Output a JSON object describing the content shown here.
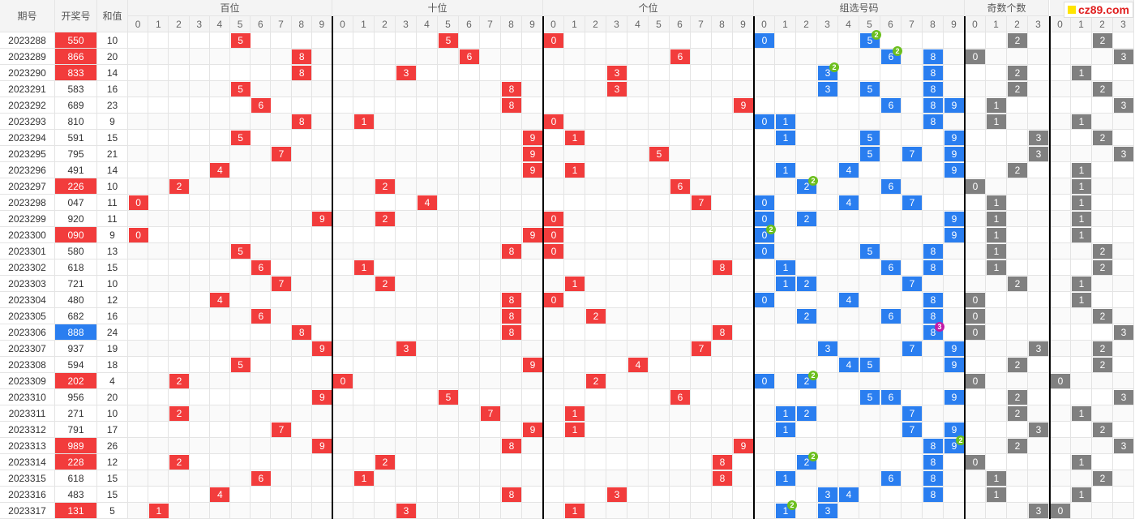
{
  "header": {
    "issue": "期号",
    "draw": "开奖号",
    "sum": "和值",
    "groups": [
      "百位",
      "十位",
      "个位",
      "组选号码",
      "奇数个数",
      ""
    ],
    "digits": [
      "0",
      "1",
      "2",
      "3",
      "4",
      "5",
      "6",
      "7",
      "8",
      "9"
    ],
    "odd_counts": [
      "0",
      "1",
      "2",
      "3"
    ]
  },
  "logo": {
    "text": "cz89.com"
  },
  "colors": {
    "red": "#f23c3c",
    "blue": "#2a7ef0",
    "gray": "#808080",
    "green": "#6cbf1e",
    "magenta": "#c21aa8"
  },
  "chart_data": {
    "type": "table",
    "rows": [
      {
        "issue": "2023288",
        "draw": "550",
        "sum": "10",
        "draw_hl": "red",
        "odd": 2,
        "small": 2,
        "rep": {
          "5": 2
        }
      },
      {
        "issue": "2023289",
        "draw": "866",
        "sum": "20",
        "draw_hl": "red",
        "odd": 0,
        "small": 3,
        "rep": {
          "6": 2
        }
      },
      {
        "issue": "2023290",
        "draw": "833",
        "sum": "14",
        "draw_hl": "red",
        "odd": 2,
        "small": 1,
        "rep": {
          "3": 2
        }
      },
      {
        "issue": "2023291",
        "draw": "583",
        "sum": "16",
        "draw_hl": "",
        "odd": 2,
        "small": 2,
        "rep": {}
      },
      {
        "issue": "2023292",
        "draw": "689",
        "sum": "23",
        "draw_hl": "",
        "odd": 1,
        "small": 3,
        "rep": {}
      },
      {
        "issue": "2023293",
        "draw": "810",
        "sum": "9",
        "draw_hl": "",
        "odd": 1,
        "small": 1,
        "rep": {}
      },
      {
        "issue": "2023294",
        "draw": "591",
        "sum": "15",
        "draw_hl": "",
        "odd": 3,
        "small": 2,
        "rep": {}
      },
      {
        "issue": "2023295",
        "draw": "795",
        "sum": "21",
        "draw_hl": "",
        "odd": 3,
        "small": 3,
        "rep": {}
      },
      {
        "issue": "2023296",
        "draw": "491",
        "sum": "14",
        "draw_hl": "",
        "odd": 2,
        "small": 1,
        "rep": {}
      },
      {
        "issue": "2023297",
        "draw": "226",
        "sum": "10",
        "draw_hl": "red",
        "odd": 0,
        "small": 1,
        "rep": {
          "2": 2
        }
      },
      {
        "issue": "2023298",
        "draw": "047",
        "sum": "11",
        "draw_hl": "",
        "odd": 1,
        "small": 1,
        "rep": {}
      },
      {
        "issue": "2023299",
        "draw": "920",
        "sum": "11",
        "draw_hl": "",
        "odd": 1,
        "small": 1,
        "rep": {}
      },
      {
        "issue": "2023300",
        "draw": "090",
        "sum": "9",
        "draw_hl": "red",
        "odd": 1,
        "small": 1,
        "rep": {
          "0": 2
        }
      },
      {
        "issue": "2023301",
        "draw": "580",
        "sum": "13",
        "draw_hl": "",
        "odd": 1,
        "small": 2,
        "rep": {}
      },
      {
        "issue": "2023302",
        "draw": "618",
        "sum": "15",
        "draw_hl": "",
        "odd": 1,
        "small": 2,
        "rep": {}
      },
      {
        "issue": "2023303",
        "draw": "721",
        "sum": "10",
        "draw_hl": "",
        "odd": 2,
        "small": 1,
        "rep": {}
      },
      {
        "issue": "2023304",
        "draw": "480",
        "sum": "12",
        "draw_hl": "",
        "odd": 0,
        "small": 1,
        "rep": {}
      },
      {
        "issue": "2023305",
        "draw": "682",
        "sum": "16",
        "draw_hl": "",
        "odd": 0,
        "small": 2,
        "rep": {}
      },
      {
        "issue": "2023306",
        "draw": "888",
        "sum": "24",
        "draw_hl": "blue",
        "odd": 0,
        "small": 3,
        "rep": {
          "8": 3
        }
      },
      {
        "issue": "2023307",
        "draw": "937",
        "sum": "19",
        "draw_hl": "",
        "odd": 3,
        "small": 2,
        "rep": {}
      },
      {
        "issue": "2023308",
        "draw": "594",
        "sum": "18",
        "draw_hl": "",
        "odd": 2,
        "small": 2,
        "rep": {}
      },
      {
        "issue": "2023309",
        "draw": "202",
        "sum": "4",
        "draw_hl": "red",
        "odd": 0,
        "small": 0,
        "rep": {
          "2": 2
        }
      },
      {
        "issue": "2023310",
        "draw": "956",
        "sum": "20",
        "draw_hl": "",
        "odd": 2,
        "small": 3,
        "rep": {}
      },
      {
        "issue": "2023311",
        "draw": "271",
        "sum": "10",
        "draw_hl": "",
        "odd": 2,
        "small": 1,
        "rep": {}
      },
      {
        "issue": "2023312",
        "draw": "791",
        "sum": "17",
        "draw_hl": "",
        "odd": 3,
        "small": 2,
        "rep": {}
      },
      {
        "issue": "2023313",
        "draw": "989",
        "sum": "26",
        "draw_hl": "red",
        "odd": 2,
        "small": 3,
        "rep": {
          "9": 2
        }
      },
      {
        "issue": "2023314",
        "draw": "228",
        "sum": "12",
        "draw_hl": "red",
        "odd": 0,
        "small": 1,
        "rep": {
          "2": 2
        }
      },
      {
        "issue": "2023315",
        "draw": "618",
        "sum": "15",
        "draw_hl": "",
        "odd": 1,
        "small": 2,
        "rep": {}
      },
      {
        "issue": "2023316",
        "draw": "483",
        "sum": "15",
        "draw_hl": "",
        "odd": 1,
        "small": 1,
        "rep": {}
      },
      {
        "issue": "2023317",
        "draw": "131",
        "sum": "5",
        "draw_hl": "red",
        "odd": 3,
        "small": 0,
        "rep": {
          "1": 2
        }
      }
    ]
  }
}
